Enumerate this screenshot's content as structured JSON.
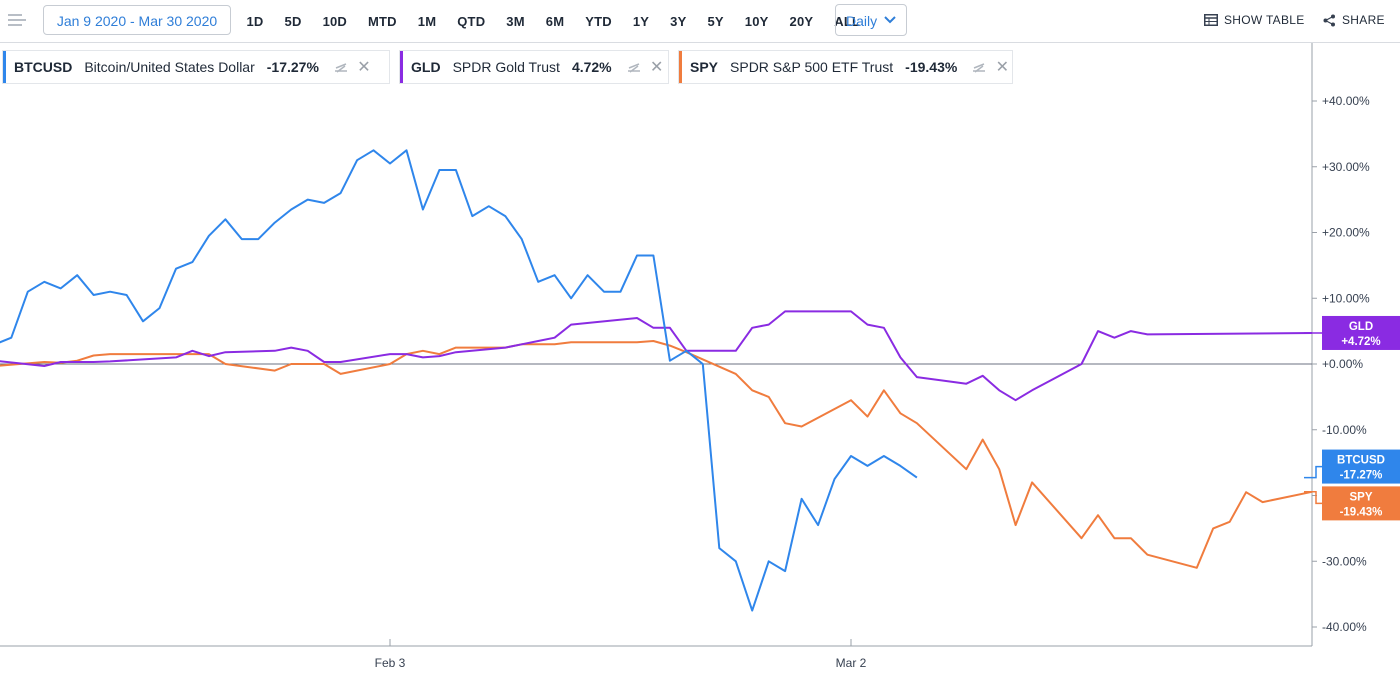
{
  "toolbar": {
    "date_range": "Jan 9 2020 - Mar 30 2020",
    "periods": [
      "1D",
      "5D",
      "10D",
      "MTD",
      "1M",
      "QTD",
      "3M",
      "6M",
      "YTD",
      "1Y",
      "3Y",
      "5Y",
      "10Y",
      "20Y",
      "ALL"
    ],
    "interval": "Daily",
    "show_table": "SHOW TABLE",
    "share": "SHARE"
  },
  "legend": [
    {
      "symbol": "BTCUSD",
      "name": "Bitcoin/United States Dollar",
      "change": "-17.27%",
      "color": "#2f86eb"
    },
    {
      "symbol": "GLD",
      "name": "SPDR Gold Trust",
      "change": "4.72%",
      "color": "#8a2be2"
    },
    {
      "symbol": "SPY",
      "name": "SPDR S&P 500 ETF Trust",
      "change": "-19.43%",
      "color": "#f07c3e"
    }
  ],
  "chart_data": {
    "type": "line",
    "ylim": [
      -40,
      40
    ],
    "y_ticks": [
      {
        "value": 40,
        "label": "+40.00%"
      },
      {
        "value": 30,
        "label": "+30.00%"
      },
      {
        "value": 20,
        "label": "+20.00%"
      },
      {
        "value": 10,
        "label": "+10.00%"
      },
      {
        "value": 0,
        "label": "+0.00%"
      },
      {
        "value": -10,
        "label": "-10.00%"
      },
      {
        "value": -20,
        "label": "-20.00%"
      },
      {
        "value": -30,
        "label": "-30.00%"
      },
      {
        "value": -40,
        "label": "-40.00%"
      }
    ],
    "x_range": [
      "2020-01-09",
      "2020-03-30"
    ],
    "x_ticks": [
      {
        "date": "2020-02-03",
        "label": "Feb 3"
      },
      {
        "date": "2020-03-02",
        "label": "Mar 2"
      }
    ],
    "series": [
      {
        "name": "BTCUSD",
        "color": "#2f86eb",
        "end_label": [
          "BTCUSD",
          "-17.27%"
        ],
        "points": [
          [
            "2020-01-09",
            0
          ],
          [
            "2020-01-10",
            3
          ],
          [
            "2020-01-11",
            4
          ],
          [
            "2020-01-12",
            11
          ],
          [
            "2020-01-13",
            12.5
          ],
          [
            "2020-01-14",
            11.5
          ],
          [
            "2020-01-15",
            13.5
          ],
          [
            "2020-01-16",
            10.5
          ],
          [
            "2020-01-17",
            11
          ],
          [
            "2020-01-18",
            10.5
          ],
          [
            "2020-01-19",
            6.5
          ],
          [
            "2020-01-20",
            8.5
          ],
          [
            "2020-01-21",
            14.5
          ],
          [
            "2020-01-22",
            15.5
          ],
          [
            "2020-01-23",
            19.5
          ],
          [
            "2020-01-24",
            22
          ],
          [
            "2020-01-25",
            19
          ],
          [
            "2020-01-26",
            19
          ],
          [
            "2020-01-27",
            21.5
          ],
          [
            "2020-01-28",
            23.5
          ],
          [
            "2020-01-29",
            25
          ],
          [
            "2020-01-30",
            24.5
          ],
          [
            "2020-01-31",
            26
          ],
          [
            "2020-02-01",
            31
          ],
          [
            "2020-02-02",
            32.5
          ],
          [
            "2020-02-03",
            30.5
          ],
          [
            "2020-02-04",
            32.5
          ],
          [
            "2020-02-05",
            23.5
          ],
          [
            "2020-02-06",
            29.5
          ],
          [
            "2020-02-07",
            29.5
          ],
          [
            "2020-02-08",
            22.5
          ],
          [
            "2020-02-09",
            24
          ],
          [
            "2020-02-10",
            22.5
          ],
          [
            "2020-02-11",
            19
          ],
          [
            "2020-02-12",
            12.5
          ],
          [
            "2020-02-13",
            13.5
          ],
          [
            "2020-02-14",
            10
          ],
          [
            "2020-02-15",
            13.5
          ],
          [
            "2020-02-16",
            11
          ],
          [
            "2020-02-17",
            11
          ],
          [
            "2020-02-18",
            16.5
          ],
          [
            "2020-02-19",
            16.5
          ],
          [
            "2020-02-20",
            0.5
          ],
          [
            "2020-02-21",
            2
          ],
          [
            "2020-02-22",
            0
          ],
          [
            "2020-02-23",
            -28
          ],
          [
            "2020-02-24",
            -30
          ],
          [
            "2020-02-25",
            -37.5
          ],
          [
            "2020-02-26",
            -30
          ],
          [
            "2020-02-27",
            -31.5
          ],
          [
            "2020-02-28",
            -20.5
          ],
          [
            "2020-02-29",
            -24.5
          ],
          [
            "2020-03-01",
            -17.5
          ],
          [
            "2020-03-02",
            -14
          ],
          [
            "2020-03-03",
            -15.5
          ],
          [
            "2020-03-04",
            -14
          ],
          [
            "2020-03-05",
            -15.5
          ],
          [
            "2020-03-06",
            -17.27
          ]
        ]
      },
      {
        "name": "GLD",
        "color": "#8a2be2",
        "end_label": [
          "GLD",
          "+4.72%"
        ],
        "points": [
          [
            "2020-01-09",
            0
          ],
          [
            "2020-01-10",
            0.5
          ],
          [
            "2020-01-13",
            -0.3
          ],
          [
            "2020-01-14",
            0.3
          ],
          [
            "2020-01-15",
            0.3
          ],
          [
            "2020-01-16",
            0.3
          ],
          [
            "2020-01-17",
            0.4
          ],
          [
            "2020-01-21",
            1
          ],
          [
            "2020-01-22",
            2
          ],
          [
            "2020-01-23",
            1.2
          ],
          [
            "2020-01-24",
            1.8
          ],
          [
            "2020-01-27",
            2
          ],
          [
            "2020-01-28",
            2.5
          ],
          [
            "2020-01-29",
            2
          ],
          [
            "2020-01-30",
            0.3
          ],
          [
            "2020-01-31",
            0.3
          ],
          [
            "2020-02-03",
            1.5
          ],
          [
            "2020-02-04",
            1.5
          ],
          [
            "2020-02-05",
            1
          ],
          [
            "2020-02-06",
            1.2
          ],
          [
            "2020-02-07",
            1.8
          ],
          [
            "2020-02-10",
            2.5
          ],
          [
            "2020-02-11",
            3
          ],
          [
            "2020-02-12",
            3.5
          ],
          [
            "2020-02-13",
            4
          ],
          [
            "2020-02-14",
            6
          ],
          [
            "2020-02-18",
            7
          ],
          [
            "2020-02-19",
            5.5
          ],
          [
            "2020-02-20",
            5.5
          ],
          [
            "2020-02-21",
            2
          ],
          [
            "2020-02-24",
            2
          ],
          [
            "2020-02-25",
            5.5
          ],
          [
            "2020-02-26",
            6
          ],
          [
            "2020-02-27",
            8
          ],
          [
            "2020-02-28",
            8
          ],
          [
            "2020-03-02",
            8
          ],
          [
            "2020-03-03",
            6
          ],
          [
            "2020-03-04",
            5.5
          ],
          [
            "2020-03-05",
            1
          ],
          [
            "2020-03-06",
            -2
          ],
          [
            "2020-03-09",
            -3
          ],
          [
            "2020-03-10",
            -1.8
          ],
          [
            "2020-03-11",
            -4
          ],
          [
            "2020-03-12",
            -5.5
          ],
          [
            "2020-03-13",
            -4
          ],
          [
            "2020-03-16",
            0
          ],
          [
            "2020-03-17",
            5
          ],
          [
            "2020-03-18",
            4
          ],
          [
            "2020-03-19",
            5
          ],
          [
            "2020-03-20",
            4.5
          ],
          [
            "2020-03-30",
            4.72
          ]
        ]
      },
      {
        "name": "SPY",
        "color": "#f07c3e",
        "end_label": [
          "SPY",
          "-19.43%"
        ],
        "points": [
          [
            "2020-01-09",
            0
          ],
          [
            "2020-01-10",
            -0.3
          ],
          [
            "2020-01-13",
            0.3
          ],
          [
            "2020-01-14",
            0.2
          ],
          [
            "2020-01-15",
            0.5
          ],
          [
            "2020-01-16",
            1.3
          ],
          [
            "2020-01-17",
            1.5
          ],
          [
            "2020-01-21",
            1.5
          ],
          [
            "2020-01-22",
            1.5
          ],
          [
            "2020-01-23",
            1.5
          ],
          [
            "2020-01-24",
            0
          ],
          [
            "2020-01-27",
            -1
          ],
          [
            "2020-01-28",
            0
          ],
          [
            "2020-01-29",
            0
          ],
          [
            "2020-01-30",
            0
          ],
          [
            "2020-01-31",
            -1.5
          ],
          [
            "2020-02-03",
            0
          ],
          [
            "2020-02-04",
            1.5
          ],
          [
            "2020-02-05",
            2
          ],
          [
            "2020-02-06",
            1.5
          ],
          [
            "2020-02-07",
            2.5
          ],
          [
            "2020-02-10",
            2.5
          ],
          [
            "2020-02-11",
            3
          ],
          [
            "2020-02-12",
            3
          ],
          [
            "2020-02-13",
            3
          ],
          [
            "2020-02-14",
            3.3
          ],
          [
            "2020-02-18",
            3.3
          ],
          [
            "2020-02-19",
            3.5
          ],
          [
            "2020-02-20",
            2.8
          ],
          [
            "2020-02-21",
            1.8
          ],
          [
            "2020-02-24",
            -1.5
          ],
          [
            "2020-02-25",
            -4
          ],
          [
            "2020-02-26",
            -5
          ],
          [
            "2020-02-27",
            -9
          ],
          [
            "2020-02-28",
            -9.5
          ],
          [
            "2020-03-02",
            -5.5
          ],
          [
            "2020-03-03",
            -8
          ],
          [
            "2020-03-04",
            -4
          ],
          [
            "2020-03-05",
            -7.5
          ],
          [
            "2020-03-06",
            -9
          ],
          [
            "2020-03-09",
            -16
          ],
          [
            "2020-03-10",
            -11.5
          ],
          [
            "2020-03-11",
            -16
          ],
          [
            "2020-03-12",
            -24.5
          ],
          [
            "2020-03-13",
            -18
          ],
          [
            "2020-03-16",
            -26.5
          ],
          [
            "2020-03-17",
            -23
          ],
          [
            "2020-03-18",
            -26.5
          ],
          [
            "2020-03-19",
            -26.5
          ],
          [
            "2020-03-20",
            -29
          ],
          [
            "2020-03-23",
            -31
          ],
          [
            "2020-03-24",
            -25
          ],
          [
            "2020-03-25",
            -24
          ],
          [
            "2020-03-26",
            -19.5
          ],
          [
            "2020-03-27",
            -21
          ],
          [
            "2020-03-30",
            -19.43
          ]
        ]
      }
    ]
  }
}
